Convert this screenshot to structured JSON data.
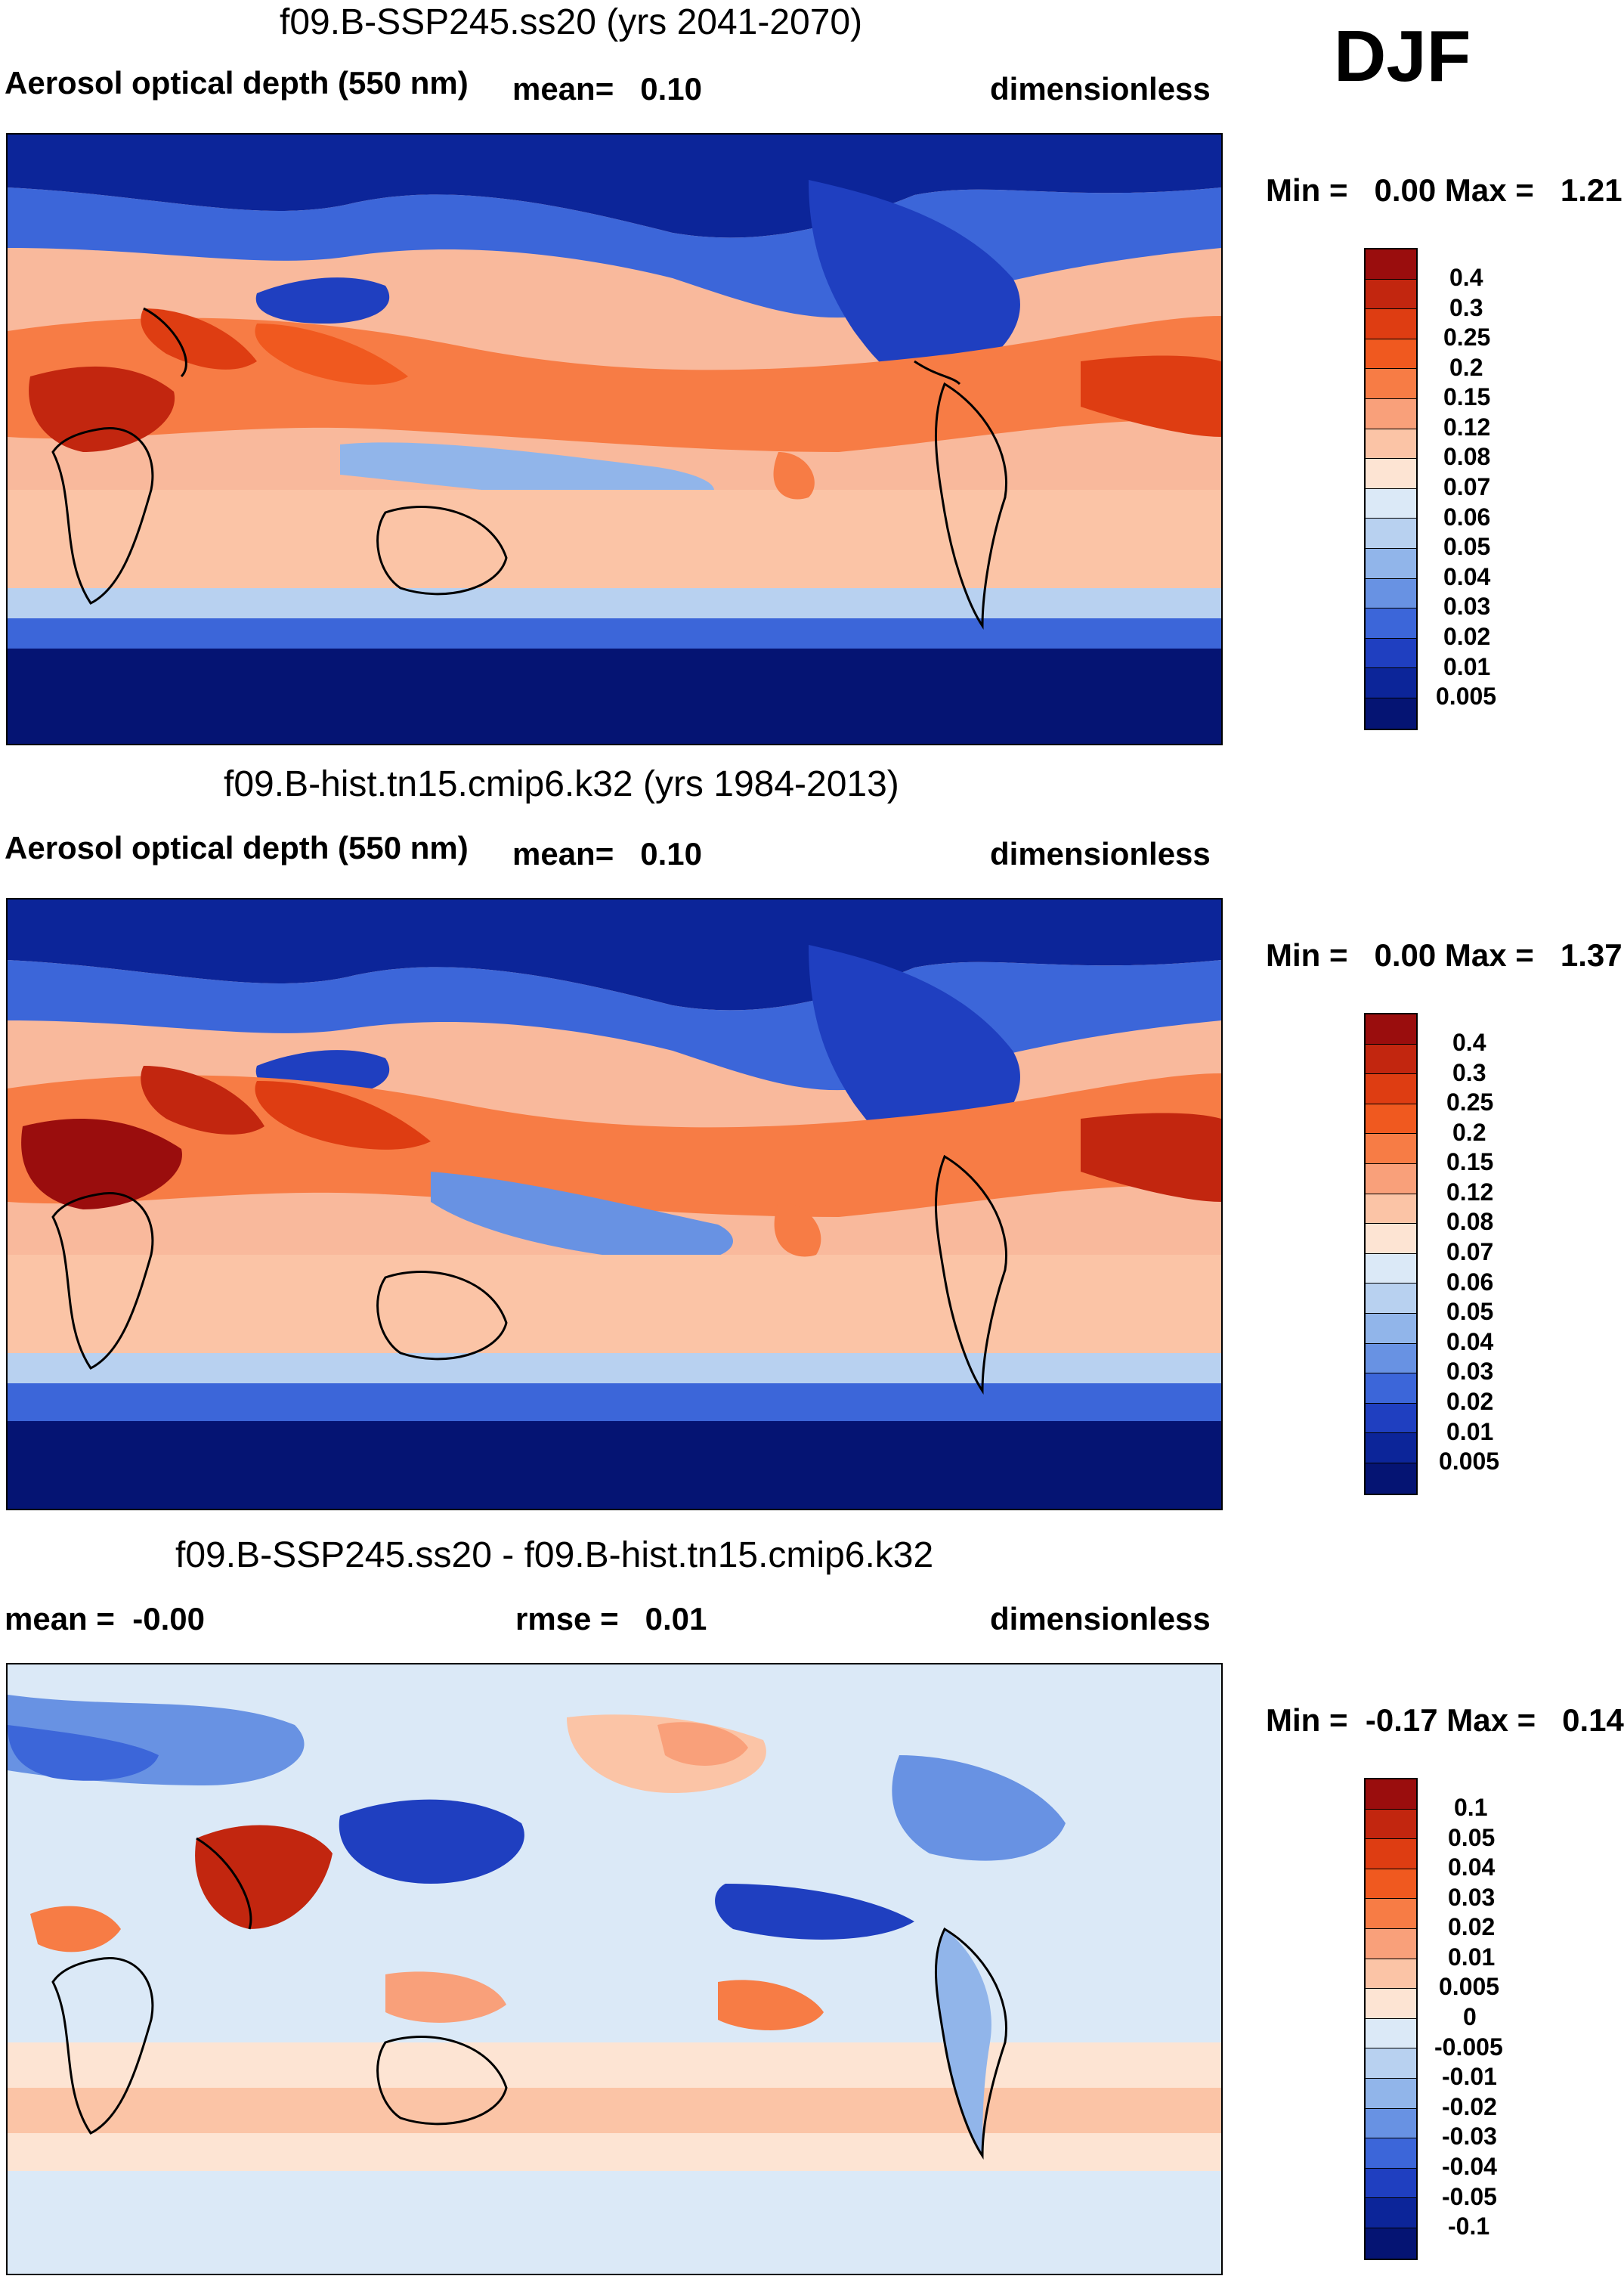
{
  "season": "DJF",
  "panels": [
    {
      "title": "f09.B-SSP245.ss20 (yrs 2041-2070)",
      "left_label": "Aerosol optical depth (550 nm)",
      "mid_label": "mean=   0.10",
      "units": "dimensionless",
      "minmax": "Min =   0.00 Max =   1.21",
      "colorbar": {
        "labels": [
          "0.4",
          "0.3",
          "0.25",
          "0.2",
          "0.15",
          "0.12",
          "0.08",
          "0.07",
          "0.06",
          "0.05",
          "0.04",
          "0.03",
          "0.02",
          "0.01",
          "0.005"
        ],
        "colors": [
          "#9a0d0d",
          "#c2260f",
          "#de3d12",
          "#f0591f",
          "#f77c45",
          "#f9a07a",
          "#fbc4a6",
          "#fde4d3",
          "#dbe9f7",
          "#b8d1f0",
          "#91b5ea",
          "#6892e3",
          "#3c66d9",
          "#1f3fc0",
          "#0c2599",
          "#051473"
        ]
      }
    },
    {
      "title": "f09.B-hist.tn15.cmip6.k32 (yrs 1984-2013)",
      "left_label": "Aerosol optical depth (550 nm)",
      "mid_label": "mean=   0.10",
      "units": "dimensionless",
      "minmax": "Min =   0.00 Max =   1.37",
      "colorbar": {
        "labels": [
          "0.4",
          "0.3",
          "0.25",
          "0.2",
          "0.15",
          "0.12",
          "0.08",
          "0.07",
          "0.06",
          "0.05",
          "0.04",
          "0.03",
          "0.02",
          "0.01",
          "0.005"
        ],
        "colors": [
          "#9a0d0d",
          "#c2260f",
          "#de3d12",
          "#f0591f",
          "#f77c45",
          "#f9a07a",
          "#fbc4a6",
          "#fde4d3",
          "#dbe9f7",
          "#b8d1f0",
          "#91b5ea",
          "#6892e3",
          "#3c66d9",
          "#1f3fc0",
          "#0c2599",
          "#051473"
        ]
      }
    },
    {
      "title": "f09.B-SSP245.ss20 - f09.B-hist.tn15.cmip6.k32",
      "left_label": "mean =  -0.00",
      "mid_label": "rmse =   0.01",
      "units": "dimensionless",
      "minmax": "Min =  -0.17 Max =   0.14",
      "colorbar": {
        "labels": [
          "0.1",
          "0.05",
          "0.04",
          "0.03",
          "0.02",
          "0.01",
          "0.005",
          "0",
          "-0.005",
          "-0.01",
          "-0.02",
          "-0.03",
          "-0.04",
          "-0.05",
          "-0.1"
        ],
        "colors": [
          "#9a0d0d",
          "#c2260f",
          "#de3d12",
          "#f0591f",
          "#f77c45",
          "#f9a07a",
          "#fbc4a6",
          "#fde4d3",
          "#dbe9f7",
          "#b8d1f0",
          "#91b5ea",
          "#6892e3",
          "#3c66d9",
          "#1f3fc0",
          "#0c2599",
          "#051473"
        ]
      }
    }
  ]
}
